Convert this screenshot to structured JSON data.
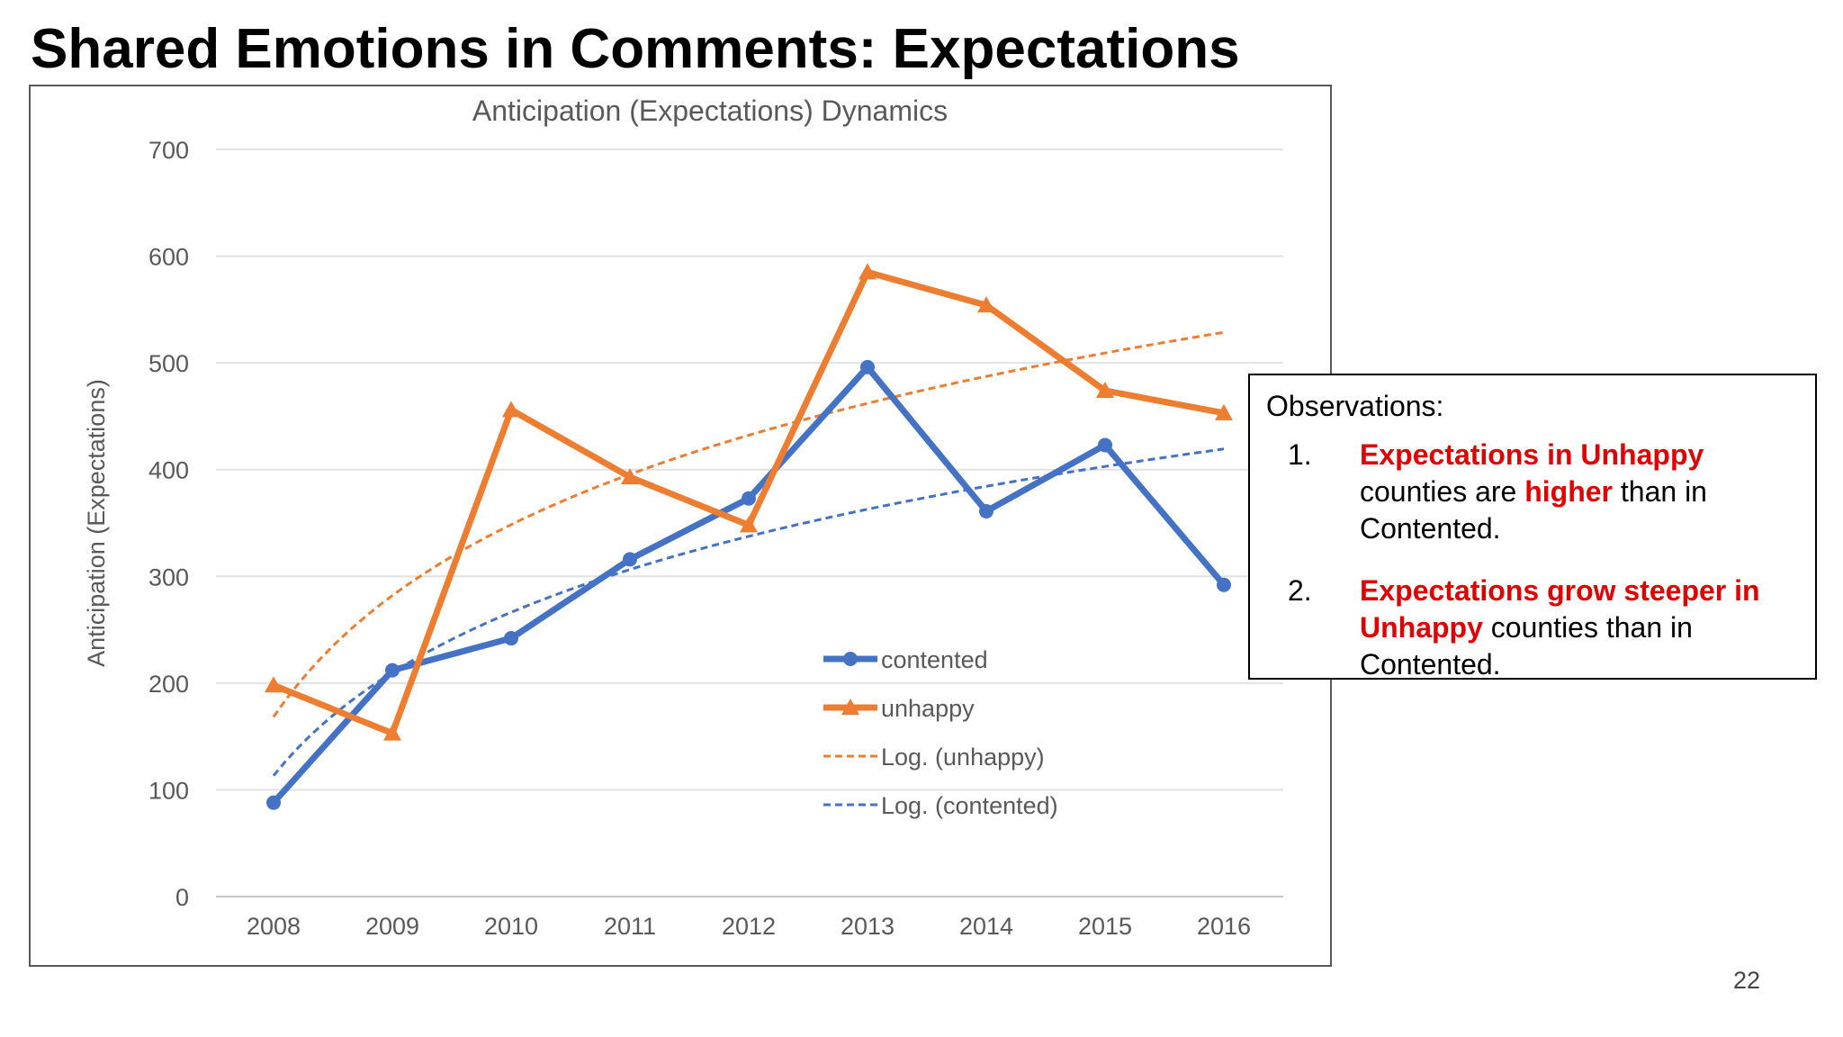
{
  "slide": {
    "title": "Shared Emotions in Comments: Expectations",
    "page_number": "22"
  },
  "observations": {
    "heading": "Observations:",
    "items": [
      {
        "number": "1.",
        "segments": [
          {
            "text": "Expectations in Unhappy",
            "highlight": true
          },
          {
            "text": " counties are ",
            "highlight": false
          },
          {
            "text": "higher",
            "highlight": true
          },
          {
            "text": " than in Contented.",
            "highlight": false
          }
        ]
      },
      {
        "number": "2.",
        "segments": [
          {
            "text": "Expectations grow steeper in Unhappy",
            "highlight": true
          },
          {
            "text": " counties than in Contented.",
            "highlight": false
          }
        ]
      }
    ]
  },
  "chart_data": {
    "type": "line",
    "title": "Anticipation (Expectations) Dynamics",
    "xlabel": "",
    "ylabel": "Anticipation (Expectations)",
    "categories": [
      "2008",
      "2009",
      "2010",
      "2011",
      "2012",
      "2013",
      "2014",
      "2015",
      "2016"
    ],
    "ylim": [
      0,
      700
    ],
    "yticks": [
      0,
      100,
      200,
      300,
      400,
      500,
      600,
      700
    ],
    "grid": "horizontal",
    "legend_position": "lower-right-inside",
    "series": [
      {
        "name": "contented",
        "values": [
          88,
          212,
          242,
          316,
          373,
          496,
          361,
          423,
          292
        ],
        "color": "#4472c4",
        "marker": "circle",
        "style": "solid"
      },
      {
        "name": "unhappy",
        "values": [
          198,
          153,
          456,
          393,
          348,
          585,
          554,
          474,
          453
        ],
        "color": "#ed7d31",
        "marker": "triangle",
        "style": "solid"
      }
    ],
    "trendlines": [
      {
        "name": "Log. (unhappy)",
        "type": "logarithmic",
        "of": "unhappy",
        "color": "#ed7d31",
        "style": "dashed"
      },
      {
        "name": "Log. (contented)",
        "type": "logarithmic",
        "of": "contented",
        "color": "#4472c4",
        "style": "dashed"
      }
    ]
  }
}
